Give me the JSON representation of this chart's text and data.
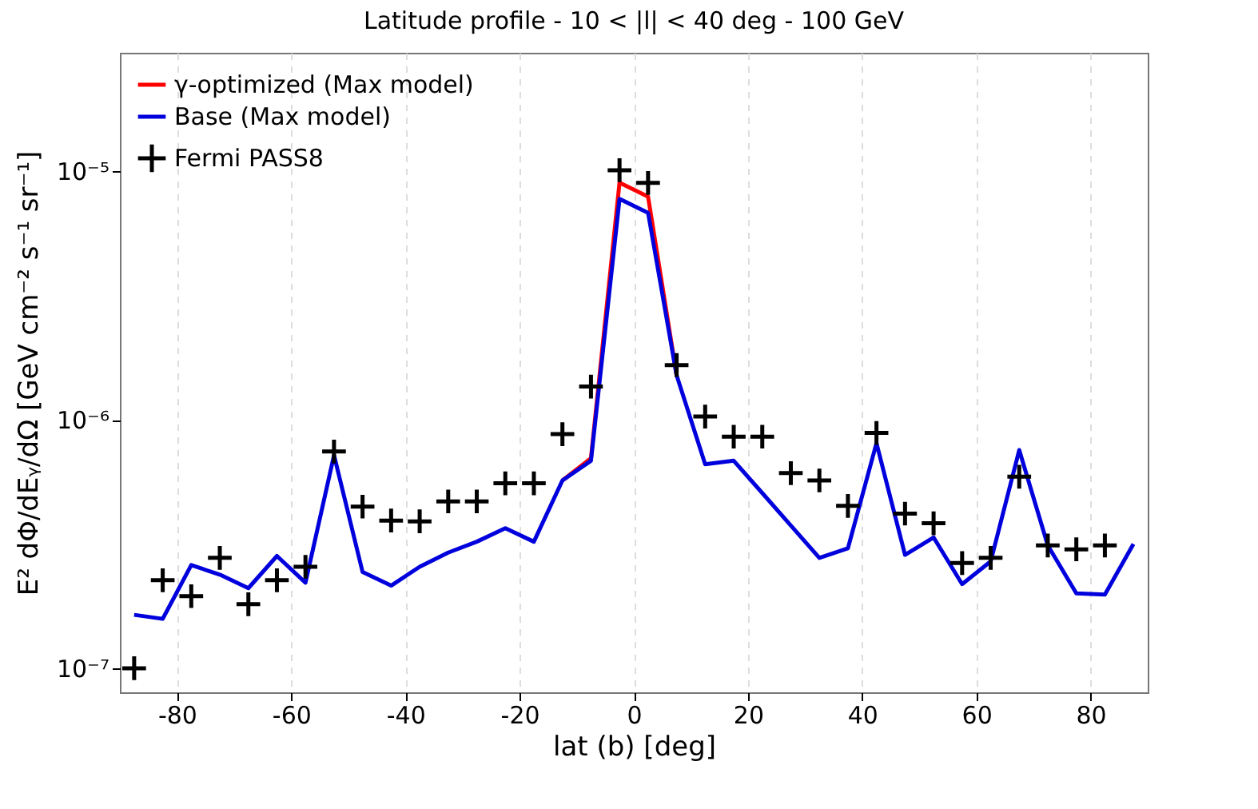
{
  "chart_data": {
    "type": "line",
    "title": "Latitude profile - 10 < |l| < 40 deg - 100 GeV",
    "xlabel": "lat (b) [deg]",
    "ylabel": "E² dΦ/dEᵧ/dΩ [GeV cm⁻² s⁻¹ sr⁻¹]",
    "x": [
      -87.5,
      -82.5,
      -77.5,
      -72.5,
      -67.5,
      -62.5,
      -57.5,
      -52.5,
      -47.5,
      -42.5,
      -37.5,
      -32.5,
      -27.5,
      -22.5,
      -17.5,
      -12.5,
      -7.5,
      -2.5,
      2.5,
      7.5,
      12.5,
      17.5,
      22.5,
      27.5,
      32.5,
      37.5,
      42.5,
      47.5,
      52.5,
      57.5,
      62.5,
      67.5,
      72.5,
      77.5,
      82.5,
      87.5
    ],
    "series": [
      {
        "name": "γ-optimized (Max model)",
        "color": "#ff0000",
        "values": [
          null,
          null,
          null,
          null,
          null,
          null,
          null,
          null,
          null,
          null,
          null,
          null,
          null,
          null,
          null,
          5.7e-07,
          7e-07,
          9e-06,
          7.9e-06,
          1.51e-06,
          null,
          null,
          null,
          null,
          null,
          null,
          null,
          null,
          null,
          null,
          null,
          null,
          null,
          null,
          null,
          null
        ]
      },
      {
        "name": "Base (Max model)",
        "color": "#0000dd",
        "values": [
          1.64e-07,
          1.58e-07,
          2.6e-07,
          2.38e-07,
          2.1e-07,
          2.83e-07,
          2.21e-07,
          7.2e-07,
          2.44e-07,
          2.15e-07,
          2.56e-07,
          2.92e-07,
          3.23e-07,
          3.66e-07,
          3.23e-07,
          5.7e-07,
          6.84e-07,
          7.74e-06,
          6.81e-06,
          1.51e-06,
          6.62e-07,
          6.84e-07,
          5.07e-07,
          3.75e-07,
          2.78e-07,
          3.04e-07,
          8.05e-07,
          2.86e-07,
          3.36e-07,
          2.18e-07,
          2.69e-07,
          7.55e-07,
          3.12e-07,
          2e-07,
          1.98e-07,
          3.16e-07
        ]
      },
      {
        "name": "Fermi PASS8",
        "type": "scatter",
        "marker": "cross",
        "color": "#000000",
        "x": [
          -87.5,
          -82.5,
          -77.5,
          -72.5,
          -67.5,
          -62.5,
          -57.5,
          -52.5,
          -47.5,
          -42.5,
          -37.5,
          -32.5,
          -27.5,
          -22.5,
          -17.5,
          -12.5,
          -7.5,
          -2.5,
          2.5,
          7.5,
          12.5,
          17.5,
          22.5,
          27.5,
          32.5,
          37.5,
          42.5,
          47.5,
          52.5,
          57.5,
          62.5,
          67.5,
          72.5,
          77.5,
          82.5
        ],
        "values": [
          1e-07,
          2.26e-07,
          1.95e-07,
          2.78e-07,
          1.81e-07,
          2.26e-07,
          2.56e-07,
          7.45e-07,
          4.47e-07,
          3.93e-07,
          3.9e-07,
          4.69e-07,
          4.69e-07,
          5.55e-07,
          5.55e-07,
          8.75e-07,
          1.36e-06,
          1.01e-05,
          8.98e-06,
          1.66e-06,
          1.03e-06,
          8.55e-07,
          8.55e-07,
          6.1e-07,
          5.7e-07,
          4.5e-07,
          8.85e-07,
          4.19e-07,
          3.83e-07,
          2.65e-07,
          2.78e-07,
          5.9e-07,
          3.12e-07,
          3.01e-07,
          3.12e-07
        ]
      }
    ],
    "xlim": [
      -90,
      90
    ],
    "xticks": [
      -80,
      -60,
      -40,
      -20,
      0,
      20,
      40,
      60,
      80
    ],
    "ylim": [
      8e-08,
      3e-05
    ],
    "yticks": [
      {
        "value": 1e-07,
        "label": "10⁻⁷"
      },
      {
        "value": 1e-06,
        "label": "10⁻⁶"
      },
      {
        "value": 1e-05,
        "label": "10⁻⁵"
      }
    ],
    "log": "y",
    "grid": "x",
    "legend": "top left"
  }
}
